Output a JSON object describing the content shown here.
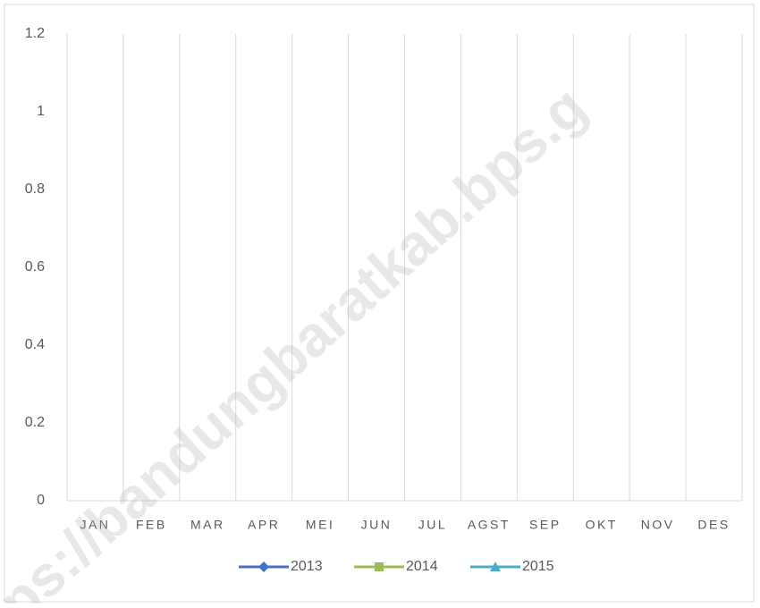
{
  "chart_data": {
    "type": "line",
    "categories": [
      "JAN",
      "FEB",
      "MAR",
      "APR",
      "MEI",
      "JUN",
      "JUL",
      "AGST",
      "SEP",
      "OKT",
      "NOV",
      "DES"
    ],
    "series": [
      {
        "name": "2013",
        "color": "#4472c4",
        "marker": "diamond",
        "values": [
          null,
          null,
          null,
          null,
          null,
          null,
          null,
          null,
          null,
          null,
          null,
          null
        ]
      },
      {
        "name": "2014",
        "color": "#9bbb59",
        "marker": "square",
        "values": [
          null,
          null,
          null,
          null,
          null,
          null,
          null,
          null,
          null,
          null,
          null,
          null
        ]
      },
      {
        "name": "2015",
        "color": "#4bacc6",
        "marker": "triangle",
        "values": [
          null,
          null,
          null,
          null,
          null,
          null,
          null,
          null,
          null,
          null,
          null,
          null
        ]
      }
    ],
    "ylim": [
      0,
      1.2
    ],
    "yticks": [
      0,
      0.2,
      0.4,
      0.6,
      0.8,
      1,
      1.2
    ],
    "grid": "vertical",
    "legend": "bottom",
    "watermark": "ps://bandungbaratkab.bps.g"
  }
}
